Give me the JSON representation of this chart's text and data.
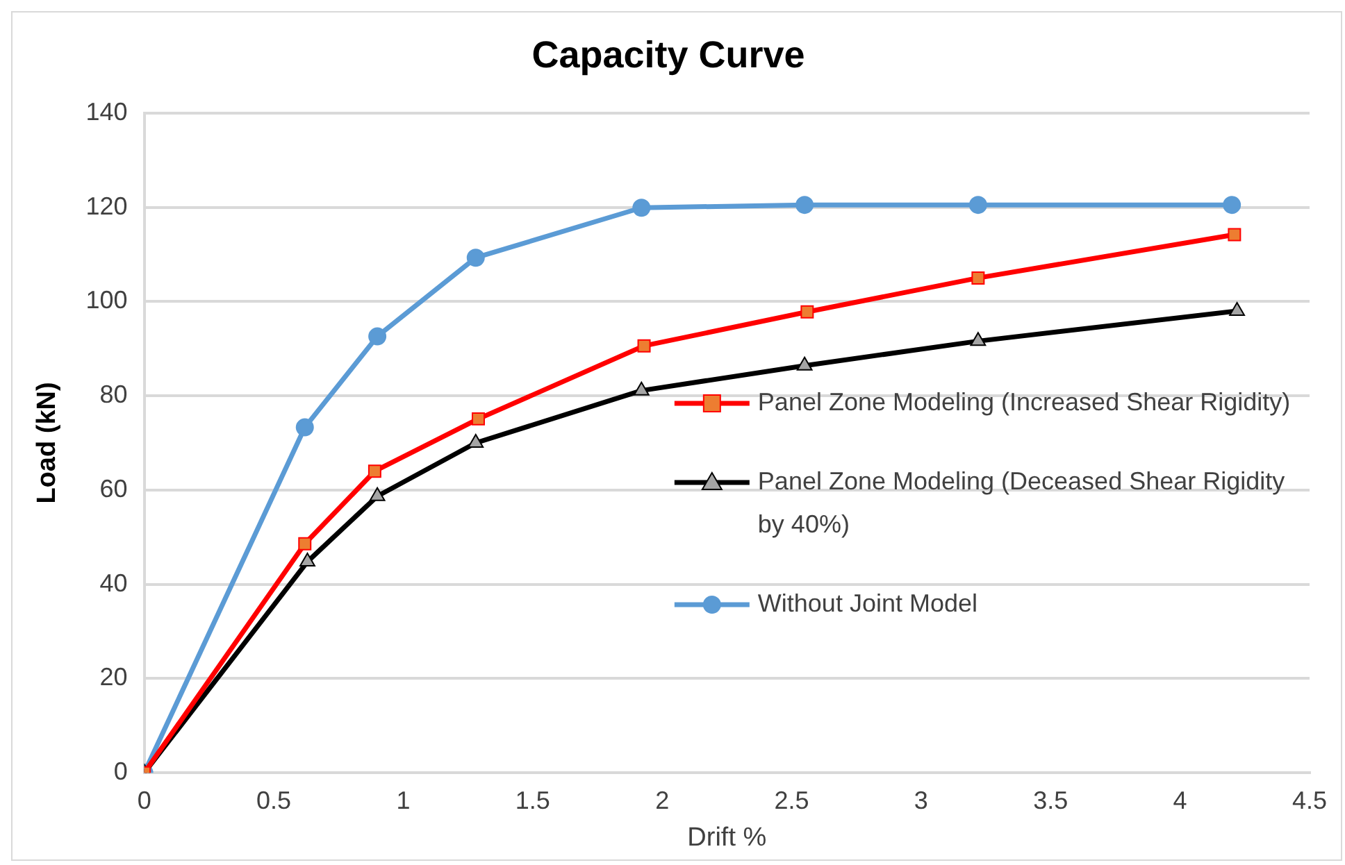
{
  "chart_data": {
    "type": "line",
    "title": "Capacity Curve",
    "xlabel": "Drift %",
    "ylabel": "Load (kN)",
    "xlim": [
      0,
      4.5
    ],
    "xticks": [
      0,
      0.5,
      1,
      1.5,
      2,
      2.5,
      3,
      3.5,
      4,
      4.5
    ],
    "ylim": [
      0,
      140
    ],
    "yticks": [
      0,
      20,
      40,
      60,
      80,
      100,
      120,
      140
    ],
    "grid": "y",
    "legend": "right",
    "line_style": "solid",
    "series": [
      {
        "name": "Panel Zone Modeling (Increased Shear Rigidity)",
        "color": "#ff0000",
        "marker": "square",
        "x": [
          0,
          0.62,
          0.89,
          1.29,
          1.93,
          2.56,
          3.22,
          4.21
        ],
        "values": [
          0,
          48.6,
          64.0,
          75.1,
          90.6,
          97.8,
          105.0,
          114.2
        ]
      },
      {
        "name": "Panel Zone Modeling (Deceased Shear Rigidity by 40%)",
        "color": "#000000",
        "marker": "triangle",
        "x": [
          0,
          0.63,
          0.9,
          1.28,
          1.92,
          2.55,
          3.22,
          4.22
        ],
        "values": [
          0,
          44.8,
          58.7,
          70.0,
          81.1,
          86.4,
          91.6,
          98.0
        ]
      },
      {
        "name": "Without Joint Model",
        "color": "#5b9bd5",
        "marker": "circle",
        "x": [
          0,
          0.62,
          0.9,
          1.28,
          1.92,
          2.55,
          3.22,
          4.2
        ],
        "values": [
          0,
          73.3,
          92.6,
          109.3,
          119.9,
          120.5,
          120.5,
          120.5
        ]
      }
    ]
  }
}
